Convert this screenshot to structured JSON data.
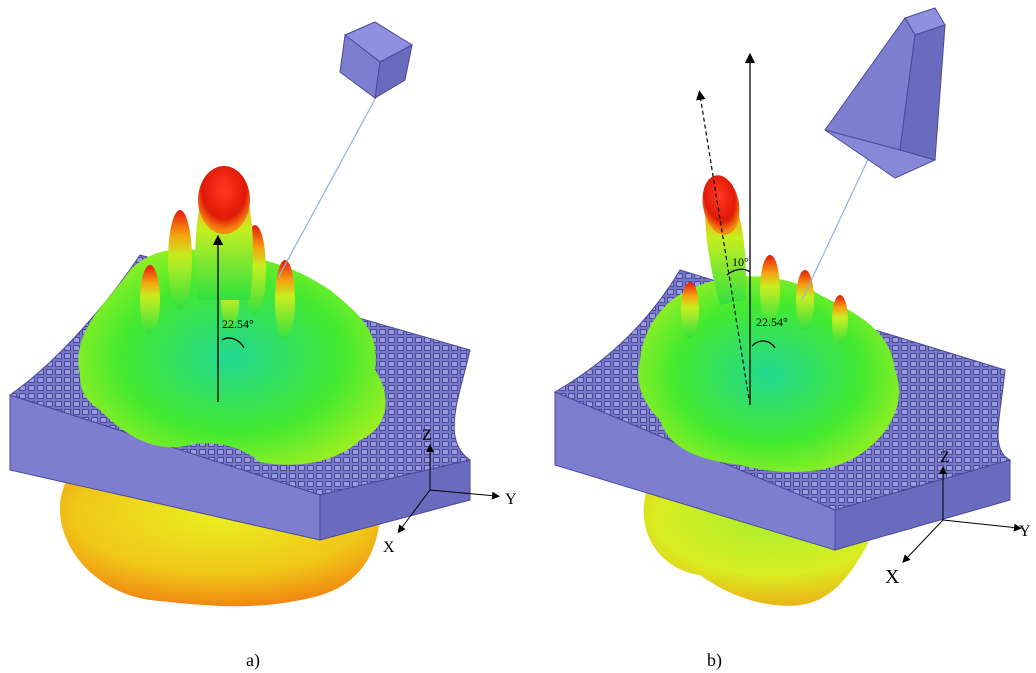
{
  "panels": [
    {
      "id": "a",
      "label": "a)",
      "angle_label": "22.54°",
      "axes": {
        "z": "Z",
        "y": "Y",
        "x": "X"
      }
    },
    {
      "id": "b",
      "label": "b)",
      "angle_label_main": "22.54°",
      "angle_label_tilt": "10°",
      "axes": {
        "z": "Z",
        "y": "Y",
        "x": "X"
      }
    }
  ],
  "colors": {
    "surface": "#7e7ed0",
    "surface_dark": "#5b5bb0",
    "surface_grid": "#4a4a98",
    "lobe_red": "#e81a0a",
    "lobe_orange": "#f59a12",
    "lobe_yellow": "#e8e820",
    "lobe_green": "#3ee63a",
    "beam_line": "#8fb4d8"
  }
}
